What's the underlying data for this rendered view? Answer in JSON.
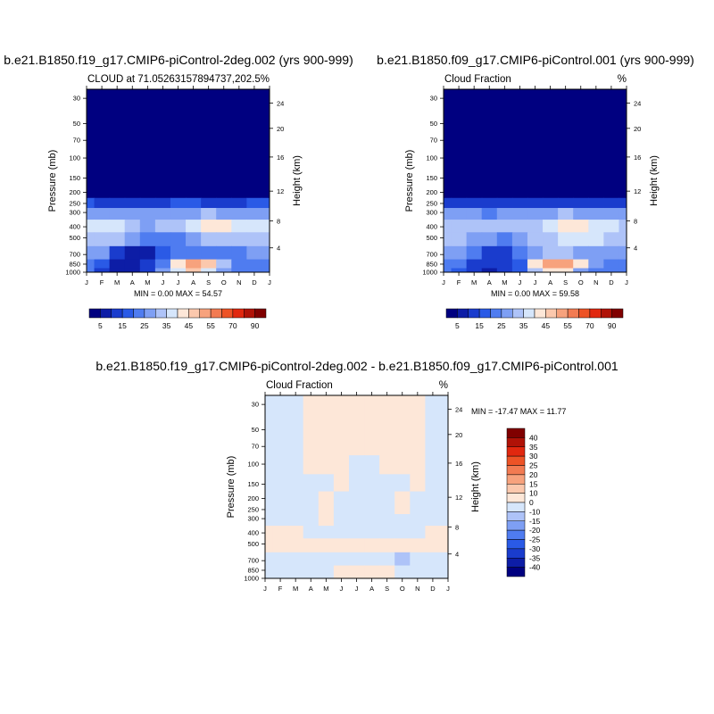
{
  "chart_data": [
    {
      "type": "heatmap",
      "title": "b.e21.B1850.f19_g17.CMIP6-piControl-2deg.002 (yrs 900-999)",
      "subtitle_left": "CLOUD at 71.05263157894737,202.5",
      "subtitle_right": "%",
      "xlabel": "",
      "ylabel": "Pressure (mb)",
      "ylabel_right": "Height (km)",
      "x_ticks": [
        "J",
        "F",
        "M",
        "A",
        "M",
        "J",
        "J",
        "A",
        "S",
        "O",
        "N",
        "D",
        "J"
      ],
      "y_ticks": [
        "30",
        "50",
        "70",
        "100",
        "150",
        "200",
        "250",
        "300",
        "400",
        "500",
        "700",
        "850",
        "1000"
      ],
      "y_right_ticks": [
        "24",
        "20",
        "16",
        "12",
        "8",
        "4"
      ],
      "y_scale": "log",
      "stats": "MIN =   0.00 MAX =  54.57",
      "legend_position": "bottom",
      "colorbar_ticks": [
        "5",
        "15",
        "25",
        "35",
        "45",
        "55",
        "70",
        "90"
      ],
      "colorbar_colors": [
        "#000080",
        "#0d1da6",
        "#1a3ccd",
        "#2a5ae6",
        "#4f7cf0",
        "#7e9ff4",
        "#aec3f8",
        "#d6e6fb",
        "#fde7d8",
        "#fbc8ad",
        "#f7a27d",
        "#f27b52",
        "#ed5326",
        "#e1280f",
        "#b01207",
        "#800000"
      ],
      "pressure_levels": [
        30,
        50,
        70,
        100,
        150,
        200,
        250,
        300,
        400,
        500,
        700,
        850,
        1000
      ],
      "months": [
        "J",
        "F",
        "M",
        "A",
        "M",
        "J",
        "J",
        "A",
        "S",
        "O",
        "N",
        "D",
        "J"
      ],
      "values": [
        [
          0,
          0,
          0,
          0,
          0,
          0,
          0,
          0,
          0,
          0,
          0,
          0,
          0
        ],
        [
          0,
          0,
          0,
          0,
          0,
          0,
          0,
          0,
          0,
          0,
          0,
          0,
          0
        ],
        [
          0,
          0,
          0,
          0,
          0,
          0,
          0,
          0,
          0,
          0,
          0,
          0,
          0
        ],
        [
          0,
          0,
          0,
          0,
          0,
          0,
          0,
          0,
          0,
          0,
          0,
          0,
          0
        ],
        [
          0,
          0,
          0,
          0,
          0,
          0,
          0,
          0,
          0,
          0,
          0,
          0,
          0
        ],
        [
          4,
          3,
          2,
          2,
          3,
          4,
          4,
          4,
          3,
          3,
          3,
          4,
          4
        ],
        [
          15,
          14,
          12,
          11,
          12,
          14,
          15,
          15,
          14,
          14,
          14,
          15,
          15
        ],
        [
          28,
          27,
          26,
          25,
          26,
          27,
          28,
          29,
          30,
          29,
          28,
          28,
          28
        ],
        [
          36,
          37,
          35,
          30,
          29,
          32,
          34,
          37,
          41,
          40,
          37,
          36,
          36
        ],
        [
          30,
          33,
          32,
          26,
          22,
          20,
          22,
          27,
          32,
          33,
          32,
          30,
          30
        ],
        [
          28,
          26,
          14,
          6,
          9,
          18,
          22,
          24,
          24,
          20,
          23,
          27,
          28
        ],
        [
          24,
          18,
          8,
          7,
          13,
          24,
          44,
          51,
          48,
          34,
          23,
          24,
          24
        ],
        [
          22,
          14,
          8,
          8,
          14,
          25,
          38,
          45,
          38,
          28,
          20,
          22,
          22
        ]
      ]
    },
    {
      "type": "heatmap",
      "title": "b.e21.B1850.f09_g17.CMIP6-piControl.001 (yrs 900-999)",
      "subtitle_left": "Cloud Fraction",
      "subtitle_right": "%",
      "xlabel": "",
      "ylabel": "Pressure (mb)",
      "ylabel_right": "Height (km)",
      "x_ticks": [
        "J",
        "F",
        "M",
        "A",
        "M",
        "J",
        "J",
        "A",
        "S",
        "O",
        "N",
        "D",
        "J"
      ],
      "y_ticks": [
        "30",
        "50",
        "70",
        "100",
        "150",
        "200",
        "250",
        "300",
        "400",
        "500",
        "700",
        "850",
        "1000"
      ],
      "y_right_ticks": [
        "24",
        "20",
        "16",
        "12",
        "8",
        "4"
      ],
      "y_scale": "log",
      "stats": "MIN =   0.00 MAX =  59.58",
      "legend_position": "bottom",
      "colorbar_ticks": [
        "5",
        "15",
        "25",
        "35",
        "45",
        "55",
        "70",
        "90"
      ],
      "colorbar_colors": [
        "#000080",
        "#0d1da6",
        "#1a3ccd",
        "#2a5ae6",
        "#4f7cf0",
        "#7e9ff4",
        "#aec3f8",
        "#d6e6fb",
        "#fde7d8",
        "#fbc8ad",
        "#f7a27d",
        "#f27b52",
        "#ed5326",
        "#e1280f",
        "#b01207",
        "#800000"
      ],
      "pressure_levels": [
        30,
        50,
        70,
        100,
        150,
        200,
        250,
        300,
        400,
        500,
        700,
        850,
        1000
      ],
      "months": [
        "J",
        "F",
        "M",
        "A",
        "M",
        "J",
        "J",
        "A",
        "S",
        "O",
        "N",
        "D",
        "J"
      ],
      "values": [
        [
          0,
          0,
          0,
          0,
          0,
          0,
          0,
          0,
          0,
          0,
          0,
          0,
          0
        ],
        [
          0,
          0,
          0,
          0,
          0,
          0,
          0,
          0,
          0,
          0,
          0,
          0,
          0
        ],
        [
          0,
          0,
          0,
          0,
          0,
          0,
          0,
          0,
          0,
          0,
          0,
          0,
          0
        ],
        [
          0,
          0,
          0,
          0,
          0,
          0,
          0,
          0,
          0,
          0,
          0,
          0,
          0
        ],
        [
          0,
          0,
          0,
          0,
          0,
          0,
          0,
          0,
          0,
          0,
          0,
          0,
          0
        ],
        [
          4,
          3,
          2,
          2,
          3,
          4,
          4,
          4,
          3,
          3,
          3,
          4,
          4
        ],
        [
          14,
          13,
          12,
          11,
          12,
          13,
          14,
          14,
          13,
          13,
          13,
          14,
          14
        ],
        [
          27,
          26,
          25,
          24,
          25,
          27,
          28,
          29,
          30,
          29,
          28,
          27,
          27
        ],
        [
          34,
          33,
          32,
          31,
          31,
          32,
          34,
          36,
          40,
          42,
          38,
          35,
          34
        ],
        [
          33,
          30,
          28,
          26,
          24,
          28,
          32,
          34,
          35,
          36,
          35,
          34,
          33
        ],
        [
          28,
          25,
          20,
          14,
          14,
          22,
          28,
          30,
          30,
          26,
          28,
          29,
          28
        ],
        [
          24,
          20,
          14,
          10,
          10,
          18,
          40,
          54,
          52,
          40,
          26,
          24,
          24
        ],
        [
          22,
          18,
          12,
          8,
          10,
          16,
          32,
          42,
          40,
          28,
          20,
          22,
          22
        ]
      ]
    },
    {
      "type": "heatmap",
      "title": "b.e21.B1850.f19_g17.CMIP6-piControl-2deg.002 - b.e21.B1850.f09_g17.CMIP6-piControl.001",
      "subtitle_left": "Cloud Fraction",
      "subtitle_right": "%",
      "xlabel": "",
      "ylabel": "Pressure (mb)",
      "ylabel_right": "Height (km)",
      "x_ticks": [
        "J",
        "F",
        "M",
        "A",
        "M",
        "J",
        "J",
        "A",
        "S",
        "O",
        "N",
        "D",
        "J"
      ],
      "y_ticks": [
        "30",
        "50",
        "70",
        "100",
        "150",
        "200",
        "250",
        "300",
        "400",
        "500",
        "700",
        "850",
        "1000"
      ],
      "y_right_ticks": [
        "24",
        "20",
        "16",
        "12",
        "8",
        "4"
      ],
      "y_scale": "log",
      "stats": "MIN = -17.47 MAX =  11.77",
      "legend_position": "right",
      "colorbar_ticks": [
        "40",
        "35",
        "30",
        "25",
        "20",
        "15",
        "10",
        "0",
        "-10",
        "-15",
        "-20",
        "-25",
        "-30",
        "-35",
        "-40"
      ],
      "colorbar_colors": [
        "#800000",
        "#b01207",
        "#e1280f",
        "#ed5326",
        "#f27b52",
        "#f7a27d",
        "#fbc8ad",
        "#fde7d8",
        "#d6e6fb",
        "#aec3f8",
        "#7e9ff4",
        "#4f7cf0",
        "#2a5ae6",
        "#1a3ccd",
        "#0d1da6",
        "#000080"
      ],
      "pressure_levels": [
        30,
        50,
        70,
        100,
        150,
        200,
        250,
        300,
        400,
        500,
        700,
        850,
        1000
      ],
      "months": [
        "J",
        "F",
        "M",
        "A",
        "M",
        "J",
        "J",
        "A",
        "S",
        "O",
        "N",
        "D",
        "J"
      ],
      "values": [
        [
          -1,
          -1,
          -1,
          1,
          1,
          1,
          1,
          1,
          1,
          1,
          1,
          -1,
          -1
        ],
        [
          -1,
          -1,
          -1,
          1,
          1,
          1,
          1,
          1,
          1,
          1,
          1,
          -1,
          -1
        ],
        [
          -1,
          -1,
          -1,
          1,
          1,
          1,
          1,
          1,
          1,
          1,
          1,
          -1,
          -1
        ],
        [
          -1,
          -1,
          -1,
          1,
          1,
          1,
          -1,
          -1,
          1,
          1,
          1,
          -1,
          -1
        ],
        [
          -1,
          -1,
          -1,
          -1,
          -1,
          1,
          -1,
          -1,
          -1,
          -1,
          1,
          -1,
          -1
        ],
        [
          -1,
          -1,
          -1,
          -1,
          1,
          -1,
          -1,
          -1,
          -1,
          1,
          -1,
          -1,
          -1
        ],
        [
          -1,
          -1,
          -1,
          -1,
          1,
          -1,
          -1,
          -1,
          -1,
          1,
          -1,
          -1,
          -1
        ],
        [
          -1,
          -1,
          -1,
          -1,
          1,
          -1,
          -1,
          -1,
          -1,
          -1,
          -1,
          -1,
          -1
        ],
        [
          1,
          1,
          1,
          -1,
          -1,
          -1,
          -1,
          -1,
          -1,
          -1,
          -1,
          1,
          1
        ],
        [
          1,
          1,
          1,
          1,
          1,
          1,
          1,
          1,
          1,
          1,
          1,
          1,
          1
        ],
        [
          -5,
          -4,
          -4,
          -1,
          -2,
          -3,
          -2,
          -2,
          -4,
          -11,
          -4,
          -2,
          -5
        ],
        [
          -4,
          -2,
          -2,
          -2,
          -1,
          2,
          4,
          5,
          2,
          -2,
          -2,
          -3,
          -4
        ],
        [
          -2,
          -2,
          -2,
          -2,
          -2,
          2,
          5,
          8,
          4,
          -2,
          -2,
          -2,
          -2
        ]
      ]
    }
  ]
}
